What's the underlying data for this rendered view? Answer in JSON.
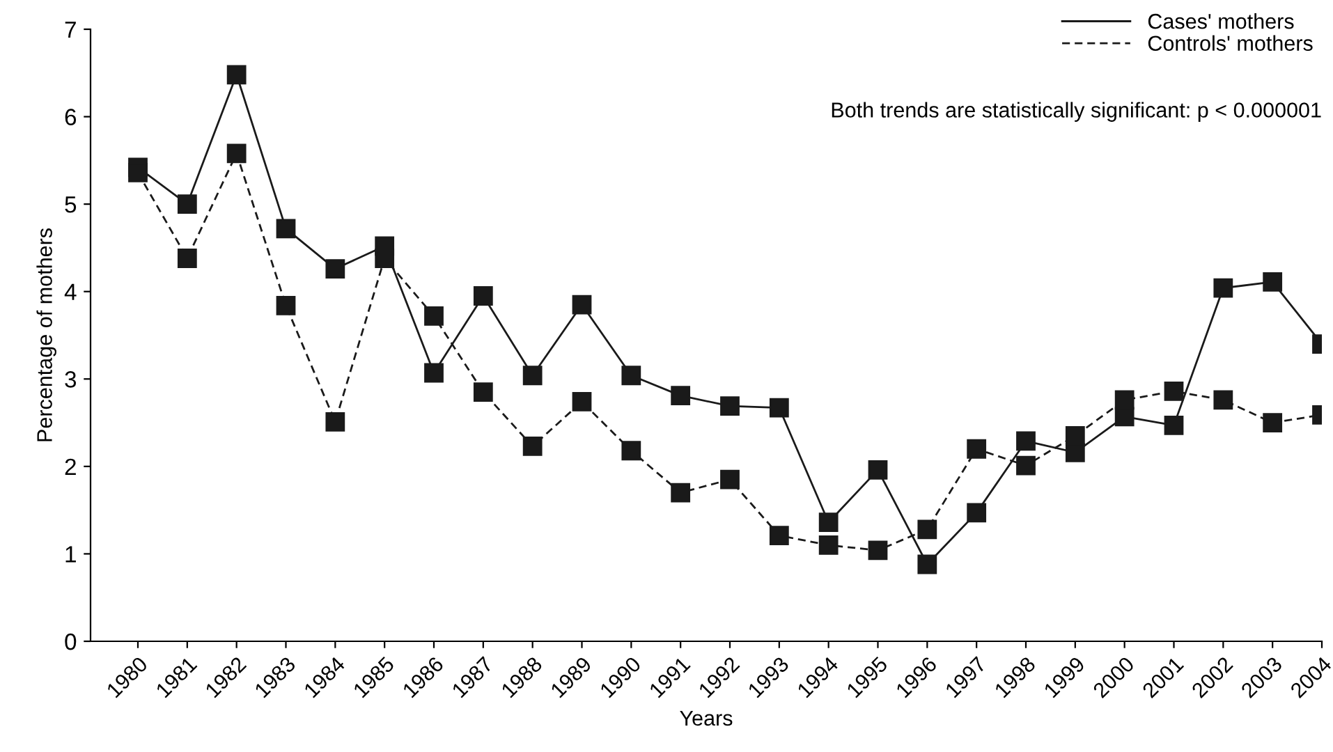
{
  "chart_data": {
    "type": "line",
    "xlabel": "Years",
    "ylabel": "Percentage of mothers",
    "categories": [
      "1980",
      "1981",
      "1982",
      "1983",
      "1984",
      "1985",
      "1986",
      "1987",
      "1988",
      "1989",
      "1990",
      "1991",
      "1992",
      "1993",
      "1994",
      "1995",
      "1996",
      "1997",
      "1998",
      "1999",
      "2000",
      "2001",
      "2002",
      "2003",
      "2004"
    ],
    "series": [
      {
        "name": "Cases' mothers",
        "color": "#1a1a1a",
        "line_style": "solid",
        "values": [
          5.42,
          5.0,
          6.48,
          4.72,
          4.26,
          4.52,
          3.07,
          3.95,
          3.04,
          3.85,
          3.04,
          2.81,
          2.69,
          2.67,
          1.36,
          1.96,
          0.88,
          1.47,
          2.29,
          2.16,
          2.57,
          2.47,
          4.04,
          4.11,
          3.4
        ]
      },
      {
        "name": "Controls' mothers",
        "color": "#1a1a1a",
        "line_style": "dashed",
        "values": [
          5.36,
          4.38,
          5.58,
          3.84,
          2.51,
          4.38,
          3.72,
          2.85,
          2.23,
          2.74,
          2.18,
          1.7,
          1.85,
          1.21,
          1.1,
          1.04,
          1.28,
          2.2,
          2.01,
          2.35,
          2.76,
          2.86,
          2.76,
          2.5,
          2.59
        ]
      }
    ],
    "marker": "square",
    "ylim": [
      0,
      7
    ],
    "yticks": [
      0,
      1,
      2,
      3,
      4,
      5,
      6,
      7
    ],
    "grid": false,
    "legend": "top right",
    "annotations": [
      "Both trends are statistically significant: p < 0.000001"
    ]
  }
}
